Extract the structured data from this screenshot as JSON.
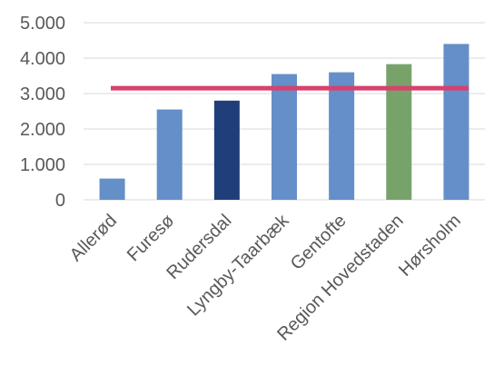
{
  "chart_data": {
    "type": "bar",
    "categories": [
      "Allerød",
      "Furesø",
      "Rudersdal",
      "Lyngby-Taarbæk",
      "Gentofte",
      "Region Hovedstaden",
      "Hørsholm"
    ],
    "series": [
      {
        "values": [
          600,
          2550,
          2800,
          3550,
          3600,
          3830,
          4400
        ],
        "colors": [
          "#658FC8",
          "#658FC8",
          "#203F7A",
          "#658FC8",
          "#658FC8",
          "#77A36B",
          "#658FC8"
        ]
      }
    ],
    "reference_line": {
      "value": 3150,
      "color": "#D8416E"
    },
    "y_ticks": [
      "0",
      "1.000",
      "2.000",
      "3.000",
      "4.000",
      "5.000"
    ],
    "y_tick_values": [
      0,
      1000,
      2000,
      3000,
      4000,
      5000
    ],
    "ylim": [
      0,
      5000
    ],
    "grid": true,
    "grid_color": "#D9D9D9",
    "title": "",
    "xlabel": "",
    "ylabel": ""
  }
}
